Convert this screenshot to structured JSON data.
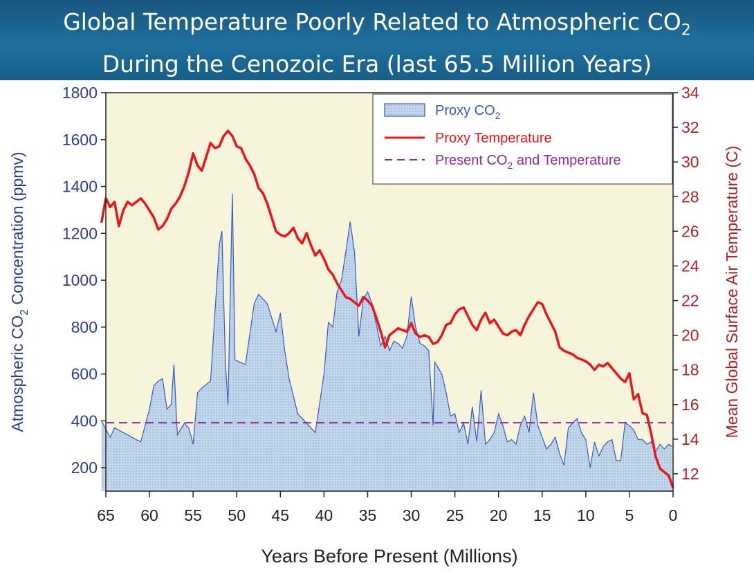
{
  "header": {
    "title_line1_main": "Global Temperature Poorly Related to Atmospheric CO",
    "title_line1_sub": "2",
    "title_line2": "During the Cenozoic Era (last 65.5 Million Years)"
  },
  "colors": {
    "banner": "#1f6f9d",
    "plot_background": "#f7f4dc",
    "co2_fill": "#c3d7ea",
    "co2_line": "#3a57c4",
    "temperature_line": "#e8161b",
    "present_line": "#8b2a9a",
    "left_axis_text": "#2b3d8f",
    "right_axis_text": "#b52020"
  },
  "chart_data": {
    "type": "area",
    "xlabel": "Years Before Present (Millions)",
    "ylabel_left": {
      "pre": "Atmospheric CO",
      "sub": "2",
      "post": " Concentration (ppmv)"
    },
    "ylabel_right": "Mean Global Surface Air Temperature (C)",
    "x_range": [
      65,
      0
    ],
    "x_ticks": [
      "65",
      "60",
      "55",
      "50",
      "45",
      "40",
      "35",
      "30",
      "25",
      "20",
      "15",
      "10",
      "5",
      "0"
    ],
    "y_left_range": [
      100,
      1800
    ],
    "y_left_ticks": [
      "200",
      "400",
      "600",
      "800",
      "1000",
      "1200",
      "1400",
      "1600",
      "1800"
    ],
    "y_right_range": [
      11,
      34
    ],
    "y_right_ticks": [
      "12",
      "14",
      "16",
      "18",
      "20",
      "22",
      "24",
      "26",
      "28",
      "30",
      "32",
      "34"
    ],
    "legend": {
      "position": "top-right",
      "items": [
        {
          "pre": "Proxy CO",
          "sub": "2",
          "post": ""
        },
        {
          "pre": "Proxy Temperature",
          "sub": "",
          "post": ""
        },
        {
          "pre": "Present CO",
          "sub": "2",
          "post": " and Temperature"
        }
      ]
    },
    "present_co2_ppmv": 392,
    "series": [
      {
        "name": "Proxy CO2",
        "kind": "area",
        "axis": "left",
        "points": [
          [
            65.5,
            400
          ],
          [
            64.5,
            330
          ],
          [
            64,
            370
          ],
          [
            63,
            350
          ],
          [
            62,
            330
          ],
          [
            61,
            310
          ],
          [
            60,
            450
          ],
          [
            59.5,
            550
          ],
          [
            59,
            570
          ],
          [
            58.5,
            580
          ],
          [
            58,
            450
          ],
          [
            57.5,
            470
          ],
          [
            57.2,
            640
          ],
          [
            56.8,
            340
          ],
          [
            56,
            390
          ],
          [
            55.5,
            370
          ],
          [
            55,
            300
          ],
          [
            54.5,
            520
          ],
          [
            54,
            540
          ],
          [
            53,
            570
          ],
          [
            52,
            1150
          ],
          [
            51.7,
            1210
          ],
          [
            51.3,
            650
          ],
          [
            51,
            470
          ],
          [
            50.5,
            1370
          ],
          [
            50.2,
            660
          ],
          [
            49,
            640
          ],
          [
            48,
            900
          ],
          [
            47.5,
            940
          ],
          [
            46.5,
            900
          ],
          [
            45.5,
            780
          ],
          [
            45,
            860
          ],
          [
            44.5,
            700
          ],
          [
            44,
            580
          ],
          [
            43,
            430
          ],
          [
            42,
            390
          ],
          [
            41,
            350
          ],
          [
            40,
            600
          ],
          [
            39.5,
            820
          ],
          [
            39,
            800
          ],
          [
            38.5,
            950
          ],
          [
            38,
            1000
          ],
          [
            37.5,
            1120
          ],
          [
            37,
            1250
          ],
          [
            36.5,
            1120
          ],
          [
            36,
            760
          ],
          [
            35.5,
            920
          ],
          [
            35,
            950
          ],
          [
            34.5,
            900
          ],
          [
            34,
            810
          ],
          [
            33.5,
            720
          ],
          [
            33,
            760
          ],
          [
            32.5,
            700
          ],
          [
            32,
            740
          ],
          [
            31.5,
            730
          ],
          [
            31,
            710
          ],
          [
            30.5,
            760
          ],
          [
            30,
            930
          ],
          [
            29.5,
            800
          ],
          [
            29,
            730
          ],
          [
            28.5,
            720
          ],
          [
            28,
            700
          ],
          [
            27.5,
            380
          ],
          [
            27.3,
            650
          ],
          [
            26.5,
            600
          ],
          [
            26,
            520
          ],
          [
            25.5,
            420
          ],
          [
            25,
            430
          ],
          [
            24.5,
            350
          ],
          [
            24,
            390
          ],
          [
            23.5,
            300
          ],
          [
            23,
            460
          ],
          [
            22.5,
            310
          ],
          [
            22,
            530
          ],
          [
            21.5,
            300
          ],
          [
            21,
            320
          ],
          [
            20.5,
            350
          ],
          [
            20,
            430
          ],
          [
            19.5,
            380
          ],
          [
            19,
            310
          ],
          [
            18.5,
            320
          ],
          [
            18,
            300
          ],
          [
            17.5,
            380
          ],
          [
            17,
            420
          ],
          [
            16.5,
            350
          ],
          [
            16,
            520
          ],
          [
            15.5,
            380
          ],
          [
            15,
            330
          ],
          [
            14.5,
            280
          ],
          [
            14,
            300
          ],
          [
            13.5,
            330
          ],
          [
            13,
            260
          ],
          [
            12.5,
            210
          ],
          [
            12,
            370
          ],
          [
            11.5,
            390
          ],
          [
            11,
            410
          ],
          [
            10.5,
            350
          ],
          [
            10,
            320
          ],
          [
            9.5,
            200
          ],
          [
            9,
            310
          ],
          [
            8.5,
            250
          ],
          [
            8,
            290
          ],
          [
            7.5,
            310
          ],
          [
            7,
            320
          ],
          [
            6.5,
            230
          ],
          [
            6,
            230
          ],
          [
            5.5,
            390
          ],
          [
            5,
            380
          ],
          [
            4.5,
            360
          ],
          [
            4,
            320
          ],
          [
            3.5,
            320
          ],
          [
            3,
            300
          ],
          [
            2.5,
            310
          ],
          [
            2,
            270
          ],
          [
            1.5,
            300
          ],
          [
            1,
            280
          ],
          [
            0.5,
            300
          ],
          [
            0.1,
            290
          ]
        ]
      },
      {
        "name": "Proxy Temperature",
        "kind": "line",
        "axis": "right",
        "points": [
          [
            65.5,
            26.5
          ],
          [
            65,
            27.9
          ],
          [
            64.5,
            27.4
          ],
          [
            64,
            27.7
          ],
          [
            63.5,
            26.3
          ],
          [
            63,
            27.2
          ],
          [
            62.5,
            27.7
          ],
          [
            62,
            27.5
          ],
          [
            61.5,
            27.7
          ],
          [
            61,
            27.9
          ],
          [
            60.5,
            27.6
          ],
          [
            60,
            27.2
          ],
          [
            59.5,
            26.8
          ],
          [
            59,
            26.1
          ],
          [
            58.5,
            26.3
          ],
          [
            58,
            26.7
          ],
          [
            57.5,
            27.3
          ],
          [
            57,
            27.6
          ],
          [
            56.5,
            28.0
          ],
          [
            56,
            28.6
          ],
          [
            55.5,
            29.4
          ],
          [
            55,
            30.5
          ],
          [
            54.5,
            29.8
          ],
          [
            54,
            29.5
          ],
          [
            53.5,
            30.3
          ],
          [
            53,
            31.1
          ],
          [
            52.5,
            30.8
          ],
          [
            52,
            30.9
          ],
          [
            51.5,
            31.5
          ],
          [
            51,
            31.8
          ],
          [
            50.5,
            31.5
          ],
          [
            50,
            30.9
          ],
          [
            49.5,
            30.8
          ],
          [
            49,
            30.2
          ],
          [
            48.5,
            29.8
          ],
          [
            48,
            29.3
          ],
          [
            47.5,
            28.5
          ],
          [
            47,
            28.2
          ],
          [
            46.5,
            27.6
          ],
          [
            46,
            26.8
          ],
          [
            45.5,
            26.0
          ],
          [
            45,
            25.8
          ],
          [
            44.5,
            25.7
          ],
          [
            44,
            25.9
          ],
          [
            43.5,
            26.2
          ],
          [
            43,
            25.6
          ],
          [
            42.5,
            25.3
          ],
          [
            42,
            25.9
          ],
          [
            41.5,
            25.2
          ],
          [
            41,
            24.6
          ],
          [
            40.5,
            24.9
          ],
          [
            40,
            24.4
          ],
          [
            39.5,
            23.8
          ],
          [
            39,
            23.5
          ],
          [
            38.5,
            23.0
          ],
          [
            38,
            22.6
          ],
          [
            37.5,
            22.2
          ],
          [
            37,
            22.1
          ],
          [
            36.5,
            21.9
          ],
          [
            36,
            21.7
          ],
          [
            35.5,
            22.2
          ],
          [
            35,
            22.0
          ],
          [
            34.5,
            21.7
          ],
          [
            34,
            21.0
          ],
          [
            33.5,
            20.2
          ],
          [
            33,
            19.3
          ],
          [
            32.5,
            20.0
          ],
          [
            32,
            20.2
          ],
          [
            31.5,
            20.4
          ],
          [
            31,
            20.3
          ],
          [
            30.5,
            20.2
          ],
          [
            30,
            20.7
          ],
          [
            29.5,
            20.1
          ],
          [
            29,
            19.9
          ],
          [
            28.5,
            20.0
          ],
          [
            28,
            19.9
          ],
          [
            27.5,
            19.5
          ],
          [
            27,
            19.6
          ],
          [
            26.5,
            20.0
          ],
          [
            26,
            20.6
          ],
          [
            25.5,
            20.7
          ],
          [
            25,
            21.2
          ],
          [
            24.5,
            21.5
          ],
          [
            24,
            21.6
          ],
          [
            23.5,
            21.1
          ],
          [
            23,
            20.6
          ],
          [
            22.5,
            20.3
          ],
          [
            22,
            20.9
          ],
          [
            21.5,
            21.3
          ],
          [
            21,
            20.7
          ],
          [
            20.5,
            20.9
          ],
          [
            20,
            20.5
          ],
          [
            19.5,
            20.1
          ],
          [
            19,
            20.0
          ],
          [
            18.5,
            20.2
          ],
          [
            18,
            20.3
          ],
          [
            17.5,
            20.0
          ],
          [
            17,
            20.6
          ],
          [
            16.5,
            21.1
          ],
          [
            16,
            21.5
          ],
          [
            15.5,
            21.9
          ],
          [
            15,
            21.8
          ],
          [
            14.5,
            21.2
          ],
          [
            14,
            20.7
          ],
          [
            13.5,
            20.2
          ],
          [
            13,
            19.3
          ],
          [
            12.5,
            19.1
          ],
          [
            12,
            19.0
          ],
          [
            11.5,
            18.9
          ],
          [
            11,
            18.7
          ],
          [
            10.5,
            18.6
          ],
          [
            10,
            18.5
          ],
          [
            9.5,
            18.3
          ],
          [
            9,
            18.0
          ],
          [
            8.5,
            18.3
          ],
          [
            8,
            18.2
          ],
          [
            7.5,
            18.4
          ],
          [
            7,
            18.1
          ],
          [
            6.5,
            17.8
          ],
          [
            6,
            17.5
          ],
          [
            5.5,
            17.3
          ],
          [
            5,
            17.8
          ],
          [
            4.5,
            16.3
          ],
          [
            4,
            16.6
          ],
          [
            3.5,
            15.5
          ],
          [
            3,
            15.4
          ],
          [
            2.5,
            14.3
          ],
          [
            2,
            13.0
          ],
          [
            1.5,
            12.3
          ],
          [
            1,
            12.1
          ],
          [
            0.5,
            11.9
          ],
          [
            0,
            11.2
          ]
        ]
      }
    ]
  }
}
